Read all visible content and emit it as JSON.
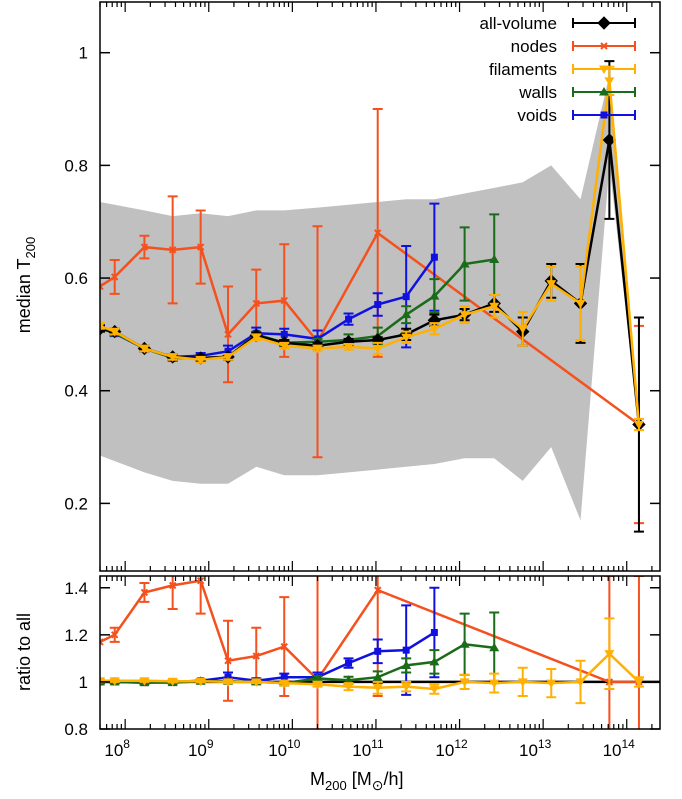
{
  "chart_data": {
    "type": "line",
    "xscale": "log",
    "xlim": [
      50000000,
      250000000000000
    ],
    "xlabel": "M",
    "xlabel_sub": "200",
    "xlabel_unit_open": " [M",
    "xlabel_sun": "⊙",
    "xlabel_unit_close": "/h]",
    "xticks": [
      {
        "value": 100000000,
        "base": "10",
        "exp": "8"
      },
      {
        "value": 1000000000,
        "base": "10",
        "exp": "9"
      },
      {
        "value": 10000000000,
        "base": "10",
        "exp": "10"
      },
      {
        "value": 100000000000,
        "base": "10",
        "exp": "11"
      },
      {
        "value": 1000000000000,
        "base": "10",
        "exp": "12"
      },
      {
        "value": 10000000000000,
        "base": "10",
        "exp": "13"
      },
      {
        "value": 100000000000000,
        "base": "10",
        "exp": "14"
      }
    ],
    "top_panel": {
      "ylabel": "median T",
      "ylabel_sub": "200",
      "ylim": [
        0.08,
        1.09
      ],
      "yticks": [
        "0.2",
        "0.4",
        "0.6",
        "0.8",
        "1"
      ],
      "band_color": "#c0c0c0",
      "band_x": [
        50000000.0,
        75000000.0,
        170000000.0,
        370000000.0,
        800000000.0,
        1700000000.0,
        3700000000.0,
        8000000000.0,
        20000000000.0,
        47000000000.0,
        105000000000.0,
        230000000000.0,
        500000000000.0,
        1150000000000.0,
        2600000000000.0,
        5700000000000.0,
        12500000000000.0,
        28000000000000.0,
        62000000000000.0,
        140000000000000.0
      ],
      "band_upper": [
        0.735,
        0.73,
        0.72,
        0.71,
        0.715,
        0.71,
        0.72,
        0.72,
        0.725,
        0.73,
        0.735,
        0.74,
        0.74,
        0.75,
        0.76,
        0.77,
        0.8,
        0.74,
        0.96,
        0.36
      ],
      "band_lower": [
        0.285,
        0.275,
        0.255,
        0.24,
        0.235,
        0.235,
        0.265,
        0.25,
        0.25,
        0.255,
        0.26,
        0.265,
        0.27,
        0.28,
        0.28,
        0.24,
        0.3,
        0.17,
        0.8,
        0.34
      ],
      "series": [
        {
          "name": "all-volume",
          "color": "#000000",
          "marker": "diamond",
          "x": [
            50000000.0,
            75000000.0,
            170000000.0,
            370000000.0,
            800000000.0,
            1700000000.0,
            3700000000.0,
            8000000000.0,
            20000000000.0,
            47000000000.0,
            105000000000.0,
            230000000000.0,
            500000000000.0,
            1150000000000.0,
            2600000000000.0,
            5700000000000.0,
            12500000000000.0,
            28000000000000.0,
            62000000000000.0,
            140000000000000.0
          ],
          "y": [
            0.51,
            0.505,
            0.475,
            0.46,
            0.458,
            0.46,
            0.498,
            0.485,
            0.48,
            0.487,
            0.49,
            0.5,
            0.525,
            0.535,
            0.555,
            0.505,
            0.595,
            0.555,
            0.845,
            0.34
          ],
          "err": [
            0.005,
            0.005,
            0.005,
            0.005,
            0.005,
            0.005,
            0.005,
            0.005,
            0.005,
            0.005,
            0.005,
            0.01,
            0.01,
            0.01,
            0.015,
            0.025,
            0.03,
            0.07,
            0.14,
            0.19
          ]
        },
        {
          "name": "nodes",
          "color": "#f4511e",
          "marker": "x",
          "x": [
            50000000.0,
            75000000.0,
            170000000.0,
            370000000.0,
            800000000.0,
            1700000000.0,
            3700000000.0,
            8000000000.0,
            20000000000.0,
            105000000000.0,
            140000000000000.0
          ],
          "y": [
            0.585,
            0.602,
            0.655,
            0.65,
            0.655,
            0.5,
            0.555,
            0.56,
            0.487,
            0.68,
            0.34
          ],
          "err": [
            0,
            0.03,
            0.02,
            0.095,
            0.065,
            0.085,
            0.06,
            0.1,
            0.205,
            0.22,
            0.175
          ]
        },
        {
          "name": "filaments",
          "color": "#ffb000",
          "marker": "triangle-down",
          "x": [
            50000000.0,
            75000000.0,
            170000000.0,
            370000000.0,
            800000000.0,
            1700000000.0,
            3700000000.0,
            8000000000.0,
            20000000000.0,
            47000000000.0,
            105000000000.0,
            230000000000.0,
            500000000000.0,
            1150000000000.0,
            2600000000000.0,
            5700000000000.0,
            12500000000000.0,
            28000000000000.0,
            62000000000000.0,
            140000000000000.0
          ],
          "y": [
            0.515,
            0.505,
            0.475,
            0.46,
            0.455,
            0.46,
            0.495,
            0.48,
            0.475,
            0.478,
            0.475,
            0.495,
            0.51,
            0.535,
            0.55,
            0.51,
            0.59,
            0.555,
            0.95,
            0.34
          ],
          "err": [
            0.005,
            0.005,
            0.005,
            0.005,
            0.005,
            0.005,
            0.005,
            0.005,
            0.005,
            0.005,
            0.01,
            0.01,
            0.01,
            0.015,
            0.02,
            0.03,
            0.03,
            0.065,
            0.025,
            0.01
          ]
        },
        {
          "name": "walls",
          "color": "#1a6b1a",
          "marker": "triangle-up",
          "x": [
            50000000.0,
            75000000.0,
            170000000.0,
            370000000.0,
            800000000.0,
            1700000000.0,
            3700000000.0,
            8000000000.0,
            20000000000.0,
            47000000000.0,
            105000000000.0,
            230000000000.0,
            500000000000.0,
            1150000000000.0,
            2600000000000.0
          ],
          "y": [
            0.51,
            0.503,
            0.475,
            0.458,
            0.458,
            0.46,
            0.5,
            0.485,
            0.487,
            0.49,
            0.497,
            0.535,
            0.568,
            0.625,
            0.633
          ],
          "err": [
            0.005,
            0.005,
            0.005,
            0.005,
            0.005,
            0.005,
            0.005,
            0.005,
            0.005,
            0.01,
            0.015,
            0.015,
            0.03,
            0.065,
            0.08
          ]
        },
        {
          "name": "voids",
          "color": "#1010e0",
          "marker": "square",
          "x": [
            50000000.0,
            75000000.0,
            170000000.0,
            370000000.0,
            800000000.0,
            1700000000.0,
            3700000000.0,
            8000000000.0,
            20000000000.0,
            47000000000.0,
            105000000000.0,
            230000000000.0,
            500000000000.0
          ],
          "y": [
            0.512,
            0.502,
            0.475,
            0.46,
            0.462,
            0.47,
            0.502,
            0.5,
            0.492,
            0.527,
            0.553,
            0.567,
            0.637
          ],
          "err": [
            0.005,
            0.005,
            0.005,
            0.005,
            0.005,
            0.01,
            0.01,
            0.01,
            0.015,
            0.01,
            0.02,
            0.09,
            0.095
          ]
        }
      ]
    },
    "bottom_panel": {
      "ylabel": "ratio to all",
      "ylim": [
        0.8,
        1.45
      ],
      "yticks": [
        "0.8",
        "1",
        "1.2",
        "1.4"
      ],
      "reference_line": 1,
      "series": [
        {
          "name": "nodes",
          "color": "#f4511e",
          "marker": "x",
          "x": [
            50000000.0,
            75000000.0,
            170000000.0,
            370000000.0,
            800000000.0,
            1700000000.0,
            3700000000.0,
            8000000000.0,
            20000000000.0,
            105000000000.0,
            62000000000000.0,
            140000000000000.0
          ],
          "y": [
            1.17,
            1.2,
            1.38,
            1.41,
            1.43,
            1.09,
            1.11,
            1.15,
            1.01,
            1.39,
            1.0,
            1.0
          ],
          "err": [
            0,
            0.03,
            0.04,
            0.1,
            0.14,
            0.17,
            0.12,
            0.21,
            0.45,
            0.45,
            0.45,
            0.45
          ]
        },
        {
          "name": "filaments",
          "color": "#ffb000",
          "marker": "triangle-down",
          "x": [
            50000000.0,
            75000000.0,
            170000000.0,
            370000000.0,
            800000000.0,
            1700000000.0,
            3700000000.0,
            8000000000.0,
            20000000000.0,
            47000000000.0,
            105000000000.0,
            230000000000.0,
            500000000000.0,
            1150000000000.0,
            2600000000000.0,
            5700000000000.0,
            12500000000000.0,
            28000000000000.0,
            62000000000000.0,
            140000000000000.0
          ],
          "y": [
            1.005,
            1.005,
            1.005,
            1.003,
            1.003,
            1.0,
            1.0,
            0.995,
            0.99,
            0.98,
            0.975,
            0.98,
            0.97,
            1.0,
            0.995,
            1.0,
            0.995,
            1.0,
            1.12,
            1.0
          ],
          "err": [
            0.005,
            0.005,
            0.005,
            0.005,
            0.005,
            0.005,
            0.005,
            0.01,
            0.01,
            0.015,
            0.025,
            0.02,
            0.02,
            0.03,
            0.04,
            0.06,
            0.06,
            0.09,
            0.15,
            0.02
          ]
        },
        {
          "name": "walls",
          "color": "#1a6b1a",
          "marker": "triangle-up",
          "x": [
            50000000.0,
            75000000.0,
            170000000.0,
            370000000.0,
            800000000.0,
            1700000000.0,
            3700000000.0,
            8000000000.0,
            20000000000.0,
            47000000000.0,
            105000000000.0,
            230000000000.0,
            500000000000.0,
            1150000000000.0,
            2600000000000.0
          ],
          "y": [
            1.0,
            1.0,
            0.997,
            0.997,
            1.003,
            1.003,
            1.0,
            0.995,
            1.015,
            1.007,
            1.02,
            1.07,
            1.085,
            1.16,
            1.145
          ],
          "err": [
            0.005,
            0.005,
            0.005,
            0.005,
            0.005,
            0.005,
            0.005,
            0.005,
            0.01,
            0.015,
            0.025,
            0.03,
            0.05,
            0.13,
            0.15
          ]
        },
        {
          "name": "voids",
          "color": "#1010e0",
          "marker": "square",
          "x": [
            50000000.0,
            75000000.0,
            170000000.0,
            370000000.0,
            800000000.0,
            1700000000.0,
            3700000000.0,
            8000000000.0,
            20000000000.0,
            47000000000.0,
            105000000000.0,
            230000000000.0,
            500000000000.0
          ],
          "y": [
            1.0,
            1.0,
            0.997,
            1.0,
            1.005,
            1.02,
            1.005,
            1.02,
            1.02,
            1.08,
            1.13,
            1.135,
            1.21
          ],
          "err": [
            0.005,
            0.005,
            0.005,
            0.005,
            0.005,
            0.02,
            0.01,
            0.015,
            0.02,
            0.02,
            0.05,
            0.19,
            0.19
          ]
        }
      ]
    },
    "legend": {
      "placement": "top-right",
      "entries": [
        {
          "label": "all-volume",
          "color": "#000000",
          "marker": "diamond"
        },
        {
          "label": "nodes",
          "color": "#f4511e",
          "marker": "x"
        },
        {
          "label": "filaments",
          "color": "#ffb000",
          "marker": "triangle-down"
        },
        {
          "label": "walls",
          "color": "#1a6b1a",
          "marker": "triangle-up"
        },
        {
          "label": "voids",
          "color": "#1010e0",
          "marker": "square"
        }
      ]
    }
  }
}
